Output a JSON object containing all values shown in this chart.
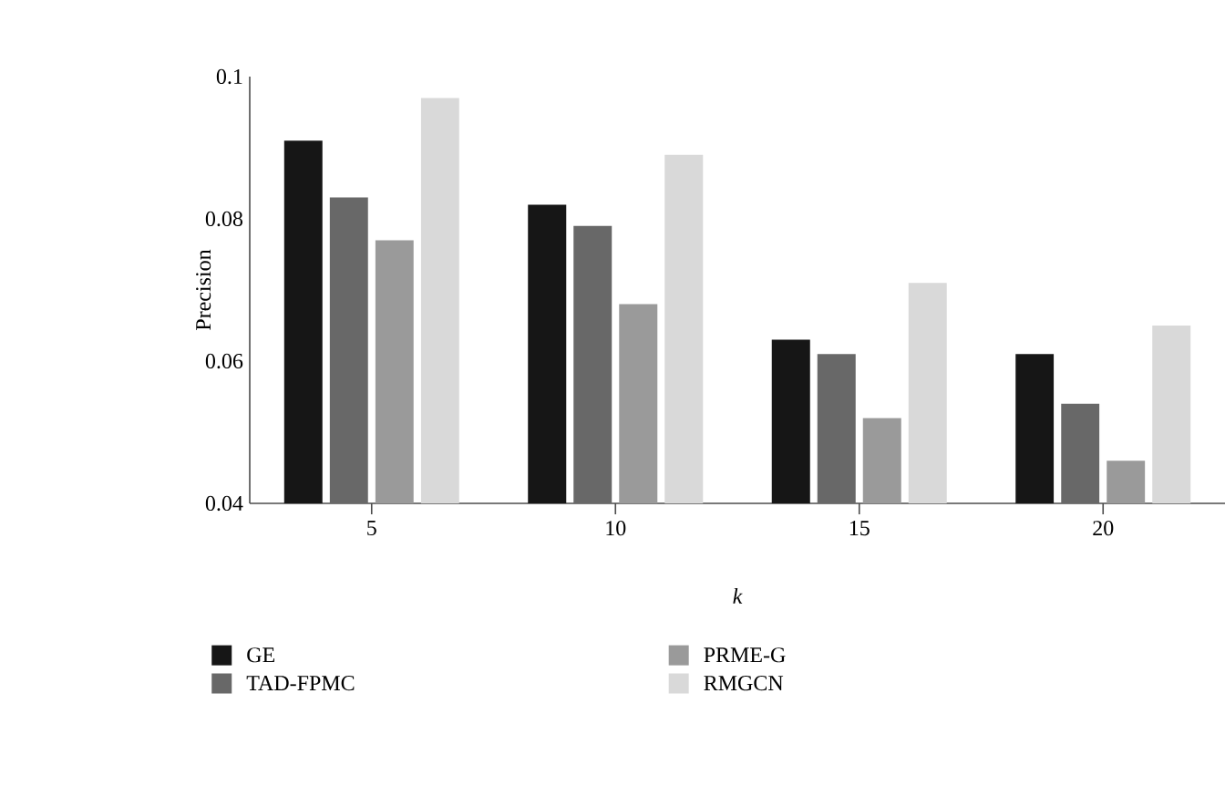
{
  "chart_data": {
    "type": "bar",
    "xlabel": "k",
    "ylabel": "Precision",
    "categories": [
      "5",
      "10",
      "15",
      "20"
    ],
    "series": [
      {
        "name": "GE",
        "color": "#161616",
        "values": [
          0.091,
          0.082,
          0.063,
          0.061
        ]
      },
      {
        "name": "TAD-FPMC",
        "color": "#686868",
        "values": [
          0.083,
          0.079,
          0.061,
          0.054
        ]
      },
      {
        "name": "PRME-G",
        "color": "#9a9a9a",
        "values": [
          0.077,
          0.068,
          0.052,
          0.046
        ]
      },
      {
        "name": "RMGCN",
        "color": "#d9d9d9",
        "values": [
          0.097,
          0.089,
          0.071,
          0.065
        ]
      }
    ],
    "ylim": [
      0.04,
      0.1
    ],
    "yticks": [
      0.04,
      0.06,
      0.08,
      0.1
    ],
    "grid": false,
    "legend": "bottom"
  }
}
